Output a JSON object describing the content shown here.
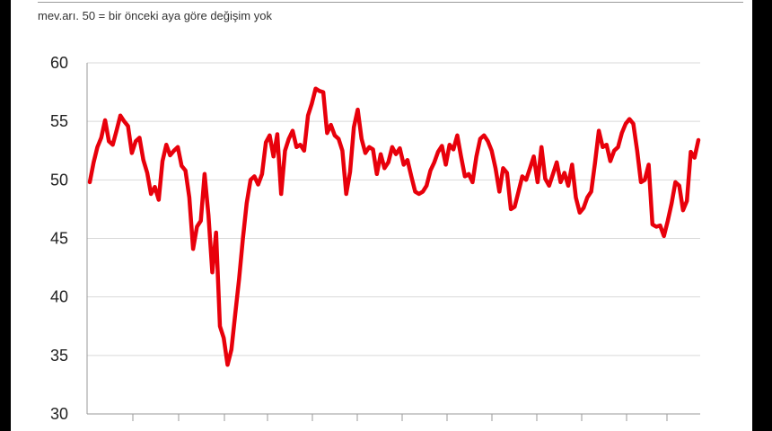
{
  "chart_data": {
    "type": "line",
    "subtitle": "mev.arı. 50 = bir önceki aya göre değişim yok",
    "title": "",
    "xlabel": "",
    "ylabel": "",
    "ylim": [
      30,
      60
    ],
    "yticks": [
      30,
      35,
      40,
      45,
      50,
      55,
      60
    ],
    "grid": true,
    "series": [
      {
        "name": "",
        "color": "#e8000b",
        "values": [
          49.8,
          51.5,
          52.8,
          53.6,
          55.1,
          53.3,
          53.0,
          54.2,
          55.5,
          55.0,
          54.6,
          52.3,
          53.3,
          53.6,
          51.7,
          50.6,
          48.8,
          49.4,
          48.3,
          51.6,
          53.0,
          52.1,
          52.5,
          52.8,
          51.2,
          50.8,
          48.5,
          44.1,
          46.0,
          46.5,
          50.5,
          47.0,
          42.1,
          45.5,
          37.5,
          36.5,
          34.2,
          35.5,
          38.5,
          41.5,
          45.0,
          48.0,
          50.0,
          50.3,
          49.6,
          50.5,
          53.2,
          53.8,
          52.0,
          53.9,
          48.8,
          52.5,
          53.5,
          54.2,
          52.8,
          53.0,
          52.5,
          55.5,
          56.5,
          57.8,
          57.6,
          57.5,
          54.0,
          54.7,
          53.8,
          53.5,
          52.5,
          48.8,
          50.7,
          54.5,
          56.0,
          53.5,
          52.3,
          52.8,
          52.6,
          50.5,
          52.2,
          51.0,
          51.5,
          52.8,
          52.2,
          52.7,
          51.3,
          51.7,
          50.3,
          49.0,
          48.8,
          49.0,
          49.5,
          50.8,
          51.5,
          52.4,
          52.9,
          51.3,
          53.0,
          52.6,
          53.8,
          52.0,
          50.3,
          50.5,
          49.8,
          52.0,
          53.5,
          53.8,
          53.3,
          52.5,
          51.0,
          49.0,
          51.0,
          50.6,
          47.5,
          47.7,
          49.0,
          50.3,
          50.0,
          51.0,
          52.0,
          49.8,
          52.8,
          50.1,
          49.5,
          50.5,
          51.5,
          49.8,
          50.6,
          49.5,
          51.3,
          48.5,
          47.2,
          47.6,
          48.5,
          49.0,
          51.5,
          54.2,
          52.8,
          53.0,
          51.6,
          52.5,
          52.8,
          54.0,
          54.8,
          55.2,
          54.8,
          52.5,
          49.8,
          50.0,
          51.3,
          46.2,
          46.0,
          46.1,
          45.2,
          46.5,
          48.0,
          49.8,
          49.5,
          47.4,
          48.2,
          52.4,
          51.9,
          53.4
        ]
      }
    ]
  }
}
